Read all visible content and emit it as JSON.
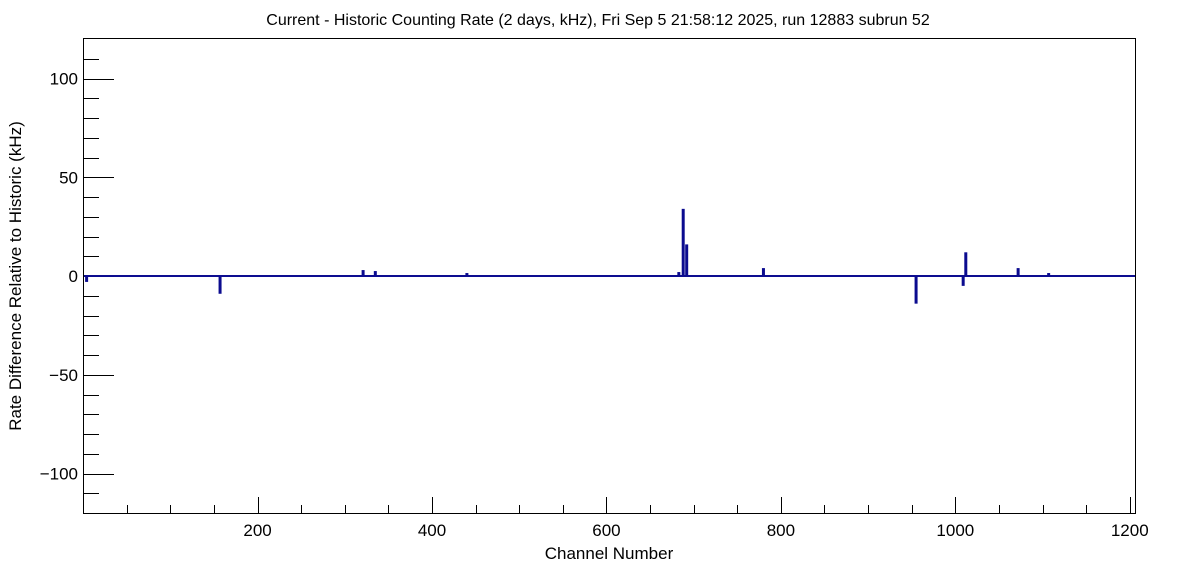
{
  "chart_data": {
    "type": "bar",
    "title": "Current - Historic Counting Rate (2 days, kHz), Fri Sep  5 21:58:12 2025, run 12883 subrun 52",
    "xlabel": "Channel Number",
    "ylabel": "Rate Difference Relative to Historic (kHz)",
    "xlim": [
      1,
      1206
    ],
    "ylim": [
      -120,
      120
    ],
    "grid": false,
    "legend": "none",
    "x_major_ticks": [
      200,
      400,
      600,
      800,
      1000,
      1200
    ],
    "y_major_ticks": [
      -100,
      -50,
      0,
      50,
      100
    ],
    "x_tick_labels": [
      "200",
      "400",
      "600",
      "800",
      "1000",
      "1200"
    ],
    "y_tick_labels": [
      "−100",
      "−50",
      "0",
      "50",
      "100"
    ],
    "series": [
      {
        "baseline_width": 1,
        "channels": [
          4,
          157,
          321,
          335,
          440,
          683,
          688,
          692,
          780,
          955,
          1009,
          1012,
          1072,
          1107
        ],
        "values": [
          -3,
          -9,
          3,
          2.5,
          1.5,
          2,
          34,
          16,
          4,
          -14,
          -5,
          12,
          4,
          1.5
        ]
      }
    ],
    "colors": {
      "series": "#0b0b8f",
      "axis": "#000000",
      "background": "#ffffff"
    }
  }
}
